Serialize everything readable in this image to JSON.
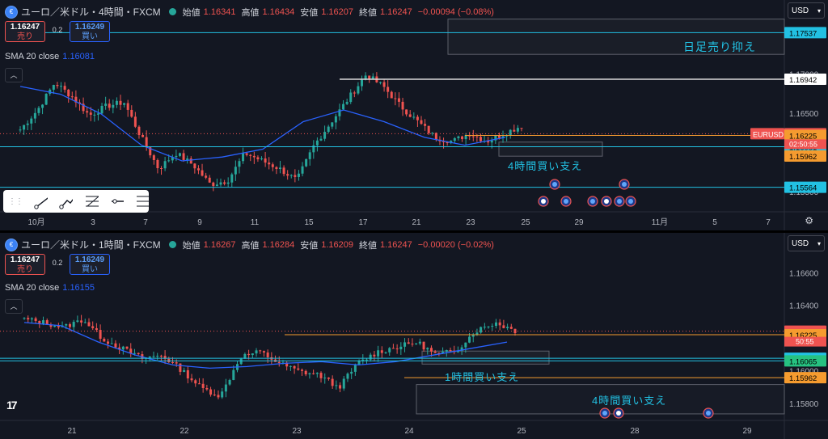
{
  "colors": {
    "up": "#26a69a",
    "down": "#ef5350",
    "sma": "#2962ff",
    "cyan": "#22c1e3",
    "orange": "#f59b2f",
    "white": "#d9d9d9",
    "bg": "#131722"
  },
  "pane1": {
    "symbol": "ユーロ／米ドル・4時間・FXCM",
    "ohlc": [
      {
        "k": "始値",
        "v": "1.16341"
      },
      {
        "k": "高値",
        "v": "1.16434"
      },
      {
        "k": "安値",
        "v": "1.16207"
      },
      {
        "k": "終値",
        "v": "1.16247"
      }
    ],
    "change": "−0.00094 (−0.08%)",
    "sell": {
      "price": "1.16247",
      "label": "売り"
    },
    "spread": "0.2",
    "buy": {
      "price": "1.16249",
      "label": "買い"
    },
    "sma_label": "SMA 20 close",
    "sma_value": "1.16081",
    "currency": "USD",
    "box_label_1": "日足売り抑え",
    "box_label_2": "4時間買い支え",
    "pair_tag": "EURUSD",
    "countdown": "02:50:55",
    "x_labels": [
      "10月",
      "3",
      "7",
      "9",
      "11",
      "15",
      "17",
      "21",
      "23",
      "25",
      "29",
      "11月",
      "5",
      "7"
    ],
    "price_ticks": [
      "1.17500",
      "1.17000",
      "1.16500",
      "1.16000",
      "1.15500"
    ],
    "price_tags": [
      "1.17537",
      "1.16942",
      "1.16247",
      "1.16225",
      "1.16081",
      "1.15962",
      "1.15564"
    ]
  },
  "pane2": {
    "symbol": "ユーロ／米ドル・1時間・FXCM",
    "ohlc": [
      {
        "k": "始値",
        "v": "1.16267"
      },
      {
        "k": "高値",
        "v": "1.16284"
      },
      {
        "k": "安値",
        "v": "1.16209"
      },
      {
        "k": "終値",
        "v": "1.16247"
      }
    ],
    "change": "−0.00020 (−0.02%)",
    "sell": {
      "price": "1.16247",
      "label": "売り"
    },
    "spread": "0.2",
    "buy": {
      "price": "1.16249",
      "label": "買い"
    },
    "sma_label": "SMA 20 close",
    "sma_value": "1.16155",
    "currency": "USD",
    "box_label_1": "1時間買い支え",
    "box_label_2": "4時間買い支え",
    "countdown": "50:55",
    "x_labels": [
      "21",
      "22",
      "23",
      "24",
      "25",
      "28",
      "29"
    ],
    "price_ticks": [
      "1.16600",
      "1.16400",
      "1.16200",
      "1.16000",
      "1.15800"
    ],
    "price_tags": [
      "1.16247",
      "1.16225",
      "1.16081",
      "1.16065",
      "1.15962"
    ]
  },
  "chart_data": [
    {
      "type": "candlestick",
      "title": "ユーロ／米ドル・4時間・FXCM",
      "ylim": [
        1.1525,
        1.1785
      ],
      "series_seed": [
        1.163,
        1.1655,
        1.169,
        1.1672,
        1.1648,
        1.166,
        1.1665,
        1.162,
        1.158,
        1.16,
        1.1585,
        1.156,
        1.1565,
        1.16,
        1.159,
        1.158,
        1.1565,
        1.161,
        1.164,
        1.167,
        1.17,
        1.1685,
        1.166,
        1.164,
        1.162,
        1.1615,
        1.1625,
        1.1615,
        1.1625,
        1.1635
      ],
      "sma20": [
        1.1685,
        1.1675,
        1.165,
        1.161,
        1.159,
        1.1595,
        1.1605,
        1.164,
        1.1655,
        1.164,
        1.162,
        1.161,
        1.162
      ],
      "levels": [
        1.17537,
        1.16942,
        1.16247,
        1.16225,
        1.16081,
        1.15962,
        1.15564
      ]
    },
    {
      "type": "candlestick",
      "title": "ユーロ／米ドル・1時間・FXCM",
      "ylim": [
        1.157,
        1.168
      ],
      "series_seed": [
        1.1632,
        1.163,
        1.1627,
        1.1632,
        1.162,
        1.1614,
        1.1608,
        1.161,
        1.1601,
        1.159,
        1.1585,
        1.1609,
        1.1612,
        1.1605,
        1.16,
        1.1598,
        1.159,
        1.1605,
        1.1612,
        1.1615,
        1.1618,
        1.161,
        1.1613,
        1.1625,
        1.163,
        1.1625
      ],
      "sma20": [
        1.163,
        1.1628,
        1.1618,
        1.161,
        1.1604,
        1.1602,
        1.1603,
        1.1605,
        1.1606,
        1.1604,
        1.1606,
        1.161,
        1.1614,
        1.1618
      ],
      "levels": [
        1.16247,
        1.16225,
        1.16081,
        1.16065,
        1.15962
      ]
    }
  ]
}
